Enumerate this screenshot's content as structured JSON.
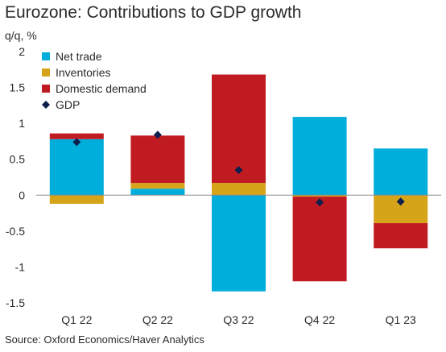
{
  "title": "Eurozone: Contributions to GDP growth",
  "y_unit": "q/q, %",
  "source": "Source: Oxford Economics/Haver Analytics",
  "chart_data": {
    "type": "bar",
    "stacked": true,
    "categories": [
      "Q1 22",
      "Q2 22",
      "Q3 22",
      "Q4 22",
      "Q1 23"
    ],
    "ylim": [
      -1.5,
      2
    ],
    "yticks": [
      2,
      1.5,
      1,
      0.5,
      0,
      -0.5,
      -1,
      -1.5
    ],
    "ytick_labels": [
      "2",
      "1.5",
      "1",
      "0.5",
      "0",
      "-0.5",
      "-1",
      "-1.5"
    ],
    "legend_position": "top-left",
    "series": [
      {
        "name": "Net trade",
        "color": "#00aedb",
        "values": [
          0.78,
          0.09,
          -1.34,
          1.09,
          0.65
        ]
      },
      {
        "name": "Inventories",
        "color": "#d5a419",
        "values": [
          -0.12,
          0.08,
          0.17,
          -0.02,
          -0.39
        ]
      },
      {
        "name": "Domestic demand",
        "color": "#c11b22",
        "values": [
          0.08,
          0.66,
          1.51,
          -1.18,
          -0.35
        ]
      }
    ],
    "markers": {
      "name": "GDP",
      "color": "#0d1f4d",
      "values": [
        0.74,
        0.84,
        0.35,
        -0.1,
        -0.09
      ]
    }
  }
}
